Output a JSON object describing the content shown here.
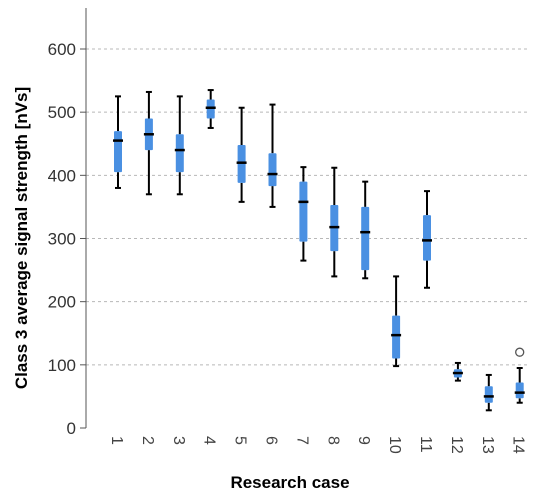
{
  "chart_data": {
    "type": "boxplot",
    "xlabel": "Research case",
    "ylabel": "Class 3 average signal strength [nVs]",
    "ylim": [
      0,
      660
    ],
    "yticks": [
      0,
      100,
      200,
      300,
      400,
      500,
      600
    ],
    "grid": "horizontal-dashed",
    "box_color": "#4a90e2",
    "median_color": "#000000",
    "whisker_color": "#000000",
    "categories": [
      "1",
      "2",
      "3",
      "4",
      "5",
      "6",
      "7",
      "8",
      "9",
      "10",
      "11",
      "12",
      "13",
      "14"
    ],
    "boxes": [
      {
        "min": 380,
        "q1": 405,
        "median": 455,
        "q3": 470,
        "max": 525
      },
      {
        "min": 370,
        "q1": 440,
        "median": 465,
        "q3": 490,
        "max": 532
      },
      {
        "min": 370,
        "q1": 405,
        "median": 440,
        "q3": 465,
        "max": 525
      },
      {
        "min": 475,
        "q1": 490,
        "median": 507,
        "q3": 520,
        "max": 535
      },
      {
        "min": 358,
        "q1": 388,
        "median": 420,
        "q3": 448,
        "max": 507
      },
      {
        "min": 350,
        "q1": 383,
        "median": 402,
        "q3": 435,
        "max": 512
      },
      {
        "min": 265,
        "q1": 295,
        "median": 358,
        "q3": 390,
        "max": 413
      },
      {
        "min": 240,
        "q1": 280,
        "median": 318,
        "q3": 353,
        "max": 412
      },
      {
        "min": 237,
        "q1": 250,
        "median": 310,
        "q3": 350,
        "max": 390
      },
      {
        "min": 98,
        "q1": 110,
        "median": 147,
        "q3": 178,
        "max": 240
      },
      {
        "min": 222,
        "q1": 265,
        "median": 297,
        "q3": 337,
        "max": 375
      },
      {
        "min": 75,
        "q1": 80,
        "median": 87,
        "q3": 93,
        "max": 103
      },
      {
        "min": 28,
        "q1": 40,
        "median": 50,
        "q3": 66,
        "max": 84
      },
      {
        "min": 40,
        "q1": 47,
        "median": 56,
        "q3": 72,
        "max": 95
      }
    ],
    "outliers": [
      {
        "category": "14",
        "value": 120
      }
    ]
  }
}
